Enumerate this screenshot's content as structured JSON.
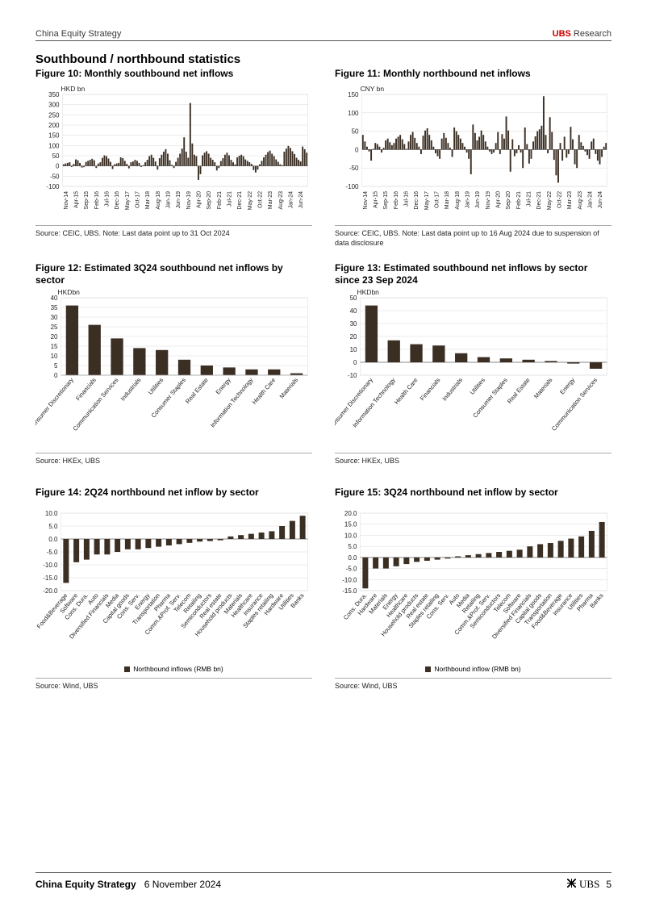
{
  "header": {
    "left": "China Equity Strategy",
    "right_brand": "UBS",
    "right_suffix": " Research"
  },
  "section_title": "Southbound / northbound statistics",
  "colors": {
    "bar": "#3b2f24",
    "grid": "#d9d9d9",
    "axis": "#666666",
    "text": "#222222",
    "bg": "#ffffff"
  },
  "fig10": {
    "title": "Figure 10: Monthly southbound net inflows",
    "ylabel": "HKD bn",
    "ylim": [
      -100,
      350
    ],
    "ytick_step": 50,
    "x_labels": [
      "Nov-14",
      "Apr-15",
      "Sep-15",
      "Feb-16",
      "Jul-16",
      "Dec-16",
      "May-17",
      "Oct-17",
      "Mar-18",
      "Aug-18",
      "Jan-19",
      "Jun-19",
      "Nov-19",
      "Apr-20",
      "Sep-20",
      "Feb-21",
      "Jul-21",
      "Dec-21",
      "May-22",
      "Oct-22",
      "Mar-23",
      "Aug-23",
      "Jan-24",
      "Jun-24"
    ],
    "values": [
      8,
      12,
      15,
      18,
      -5,
      10,
      32,
      28,
      15,
      -8,
      -6,
      20,
      25,
      30,
      35,
      28,
      -10,
      12,
      18,
      40,
      52,
      48,
      36,
      20,
      -15,
      8,
      12,
      15,
      42,
      38,
      25,
      10,
      -12,
      18,
      22,
      30,
      25,
      15,
      -5,
      4,
      18,
      30,
      48,
      55,
      40,
      22,
      -18,
      38,
      55,
      70,
      82,
      60,
      28,
      5,
      -10,
      20,
      40,
      60,
      85,
      140,
      70,
      40,
      308,
      110,
      55,
      48,
      -68,
      -40,
      52,
      65,
      72,
      60,
      40,
      30,
      18,
      -22,
      -10,
      24,
      38,
      55,
      65,
      52,
      30,
      18,
      8,
      42,
      50,
      55,
      48,
      32,
      25,
      18,
      10,
      -20,
      -32,
      -18,
      8,
      25,
      42,
      55,
      68,
      75,
      60,
      48,
      32,
      20,
      8,
      4,
      70,
      85,
      98,
      88,
      72,
      58,
      40,
      30,
      22,
      95,
      82,
      65
    ],
    "source": "Source: CEIC, UBS. Note: Last data point up to 31 Oct 2024"
  },
  "fig11": {
    "title": "Figure 11: Monthly northbound net inflows",
    "ylabel": "CNY bn",
    "ylim": [
      -100,
      150
    ],
    "ytick_step": 50,
    "x_labels": [
      "Nov-14",
      "Apr-15",
      "Sep-15",
      "Feb-16",
      "Jul-16",
      "Dec-16",
      "May-17",
      "Oct-17",
      "Mar-18",
      "Aug-18",
      "Jan-19",
      "Jun-19",
      "Nov-19",
      "Apr-20",
      "Sep-20",
      "Feb-21",
      "Jul-21",
      "Dec-21",
      "May-22",
      "Oct-22",
      "Mar-23",
      "Aug-23",
      "Jan-24",
      "Jun-24"
    ],
    "values": [
      40,
      22,
      8,
      -5,
      -30,
      2,
      18,
      15,
      8,
      -8,
      5,
      25,
      30,
      20,
      12,
      18,
      30,
      35,
      40,
      28,
      15,
      2,
      22,
      40,
      48,
      32,
      18,
      8,
      -12,
      38,
      52,
      58,
      40,
      25,
      8,
      -10,
      -18,
      -25,
      30,
      45,
      32,
      18,
      5,
      -20,
      60,
      50,
      40,
      30,
      18,
      8,
      -8,
      -25,
      -67,
      68,
      45,
      25,
      35,
      52,
      40,
      22,
      8,
      -5,
      -12,
      -8,
      18,
      48,
      -12,
      42,
      30,
      90,
      52,
      -60,
      28,
      -18,
      -10,
      12,
      -8,
      -50,
      60,
      15,
      -38,
      -25,
      22,
      36,
      50,
      55,
      65,
      145,
      40,
      -10,
      88,
      48,
      -28,
      -70,
      -90,
      18,
      -30,
      35,
      -22,
      -12,
      62,
      28,
      -40,
      -50,
      40,
      20,
      10,
      -5,
      -15,
      -25,
      22,
      30,
      -12,
      -30,
      -40,
      -20,
      8,
      18
    ],
    "source": "Source: CEIC, UBS. Note: Last data point up to 16 Aug 2024 due to suspension of data disclosure"
  },
  "fig12": {
    "title": "Figure 12: Estimated 3Q24 southbound net inflows by sector",
    "ylabel": "HKDbn",
    "ylim": [
      0,
      40
    ],
    "ytick_step": 5,
    "categories": [
      "Consumer Discretionary",
      "Financials",
      "Communication Services",
      "Industrials",
      "Utilities",
      "Consumer Staples",
      "Real Estate",
      "Energy",
      "Information Technology",
      "Health Care",
      "Materials"
    ],
    "values": [
      36,
      26,
      19,
      14,
      13,
      8,
      5,
      4,
      3,
      3,
      1
    ],
    "source": "Source: HKEx, UBS"
  },
  "fig13": {
    "title": "Figure 13: Estimated southbound net inflows by sector since 23 Sep 2024",
    "ylabel": "HKDbn",
    "ylim": [
      -10,
      50
    ],
    "ytick_step": 10,
    "categories": [
      "Consumer Discretionary",
      "Information Technology",
      "Health Care",
      "Financials",
      "Industrials",
      "Utilities",
      "Consumer Staples",
      "Real Estate",
      "Materials",
      "Energy",
      "Communication Services"
    ],
    "values": [
      44,
      17,
      14,
      13,
      7,
      4,
      3,
      2,
      1,
      -1,
      -5
    ],
    "source": "Source: HKEx, UBS"
  },
  "fig14": {
    "title": "Figure 14: 2Q24 northbound net inflow by sector",
    "ylim": [
      -20,
      10
    ],
    "ytick_step": 5,
    "categories": [
      "Food&Beverage",
      "Software",
      "Cons. Dura.",
      "Auto",
      "Diversified Financials",
      "Media",
      "Capital goods",
      "Cons. Serv.",
      "Energy",
      "Transportation",
      "Pharma",
      "Comm.&Prof. Serv.",
      "Telecom",
      "Retailing",
      "Semiconductors",
      "Real estate",
      "Household products",
      "Materials",
      "Healthcare",
      "Insurance",
      "Staples retailing",
      "Hardware",
      "Utilities",
      "Banks"
    ],
    "values": [
      -17,
      -9,
      -8,
      -6,
      -6,
      -5,
      -4,
      -4,
      -3.5,
      -3,
      -2.5,
      -2,
      -1.5,
      -1,
      -0.8,
      -0.5,
      1,
      1.5,
      2,
      2.5,
      3,
      5,
      7,
      9
    ],
    "legend": "Northbound inflows (RMB bn)",
    "source": "Source: Wind, UBS"
  },
  "fig15": {
    "title": "Figure 15: 3Q24 northbound net inflow by sector",
    "ylim": [
      -15,
      20
    ],
    "ytick_step": 5,
    "categories": [
      "Cons. Dura.",
      "Hardware",
      "Materials",
      "Energy",
      "Healthcare",
      "Household products",
      "Real estate",
      "Staples retailing",
      "Cons. Serv.",
      "Auto",
      "Media",
      "Retailing",
      "Comm.&Prof. Serv.",
      "Semiconductors",
      "Telecom",
      "Software",
      "Diversified Financials",
      "Capital goods",
      "Transportation",
      "Food&Beverage",
      "Insurance",
      "Utilities",
      "Pharma",
      "Banks"
    ],
    "values": [
      -14,
      -5,
      -5,
      -4,
      -3,
      -2,
      -1.5,
      -1,
      -0.5,
      0.5,
      1,
      1.5,
      2,
      2.5,
      3,
      3.5,
      5,
      6,
      6.5,
      7.5,
      8.5,
      9.5,
      12,
      16
    ],
    "legend": "Northbound inflow (RMB bn)",
    "source": "Source: Wind, UBS"
  },
  "footer": {
    "title": "China Equity Strategy",
    "date": "6 November 2024",
    "brand": "UBS",
    "page": "5"
  }
}
